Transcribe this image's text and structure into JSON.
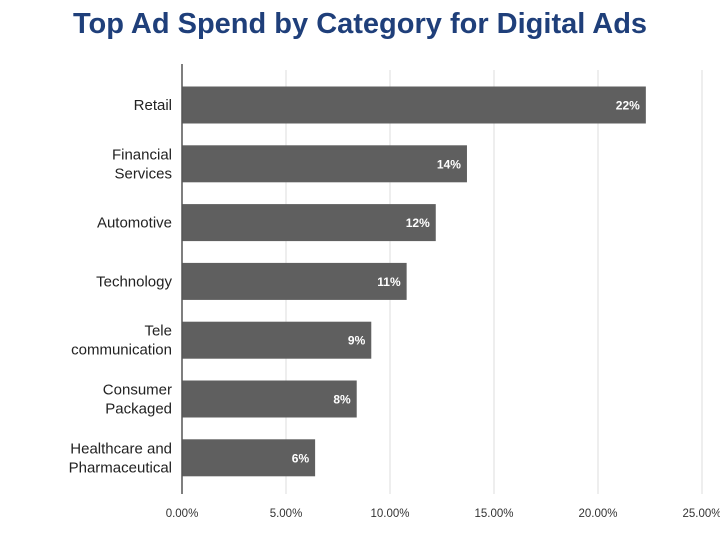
{
  "chart_data": {
    "type": "bar",
    "orientation": "horizontal",
    "title": "Top Ad Spend by Category for Digital Ads",
    "categories": [
      [
        "Retail"
      ],
      [
        "Financial",
        "Services"
      ],
      [
        "Automotive"
      ],
      [
        "Technology"
      ],
      [
        "Tele",
        "communication"
      ],
      [
        "Consumer",
        "Packaged"
      ],
      [
        "Healthcare and",
        "Pharmaceutical"
      ]
    ],
    "values": [
      22.3,
      13.7,
      12.2,
      10.8,
      9.1,
      8.4,
      6.4
    ],
    "data_labels": [
      "22%",
      "14%",
      "12%",
      "11%",
      "9%",
      "8%",
      "6%"
    ],
    "xlim": [
      0,
      25
    ],
    "x_ticks": [
      0,
      5,
      10,
      15,
      20,
      25
    ],
    "x_tick_labels": [
      "0.00%",
      "5.00%",
      "10.00%",
      "15.00%",
      "20.00%",
      "25.00%"
    ],
    "grid": "vertical",
    "legend": "none",
    "bar_color": "#5f5f5f",
    "grid_color": "#dddddd",
    "axis_color": "#555555"
  }
}
